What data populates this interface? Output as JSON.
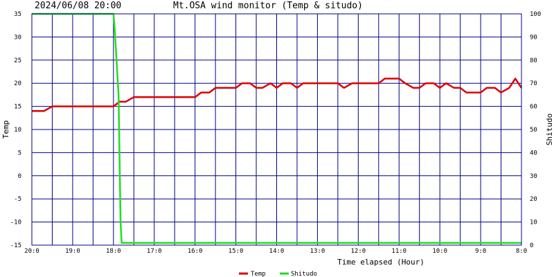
{
  "header": {
    "timestamp": "2024/06/08 20:00",
    "title": "Mt.OSA wind monitor (Temp & situdo)"
  },
  "colors": {
    "grid": "#000080",
    "temp": "#dd0000",
    "shitsudo": "#22dd22",
    "text": "#000000"
  },
  "chart_data": {
    "type": "line",
    "title": "Mt.OSA wind monitor (Temp & situdo)",
    "xlabel": "Time elapsed (Hour)",
    "ylabel_left": "Temp",
    "ylabel_right": "Shitudo",
    "x_range": [
      0,
      24
    ],
    "x_grid_step": 1,
    "x_ticks": [
      {
        "x": 0,
        "label": "20:0"
      },
      {
        "x": 2,
        "label": "19:0"
      },
      {
        "x": 4,
        "label": "18:0"
      },
      {
        "x": 6,
        "label": "17:0"
      },
      {
        "x": 8,
        "label": "16:0"
      },
      {
        "x": 10,
        "label": "15:0"
      },
      {
        "x": 12,
        "label": "14:0"
      },
      {
        "x": 14,
        "label": "13:0"
      },
      {
        "x": 16,
        "label": "12:0"
      },
      {
        "x": 18,
        "label": "11:0"
      },
      {
        "x": 20,
        "label": "10:0"
      },
      {
        "x": 22,
        "label": "9:0"
      },
      {
        "x": 24,
        "label": "8:0"
      }
    ],
    "ylim_left": [
      -15,
      35
    ],
    "y_ticks_left": [
      35,
      30,
      25,
      20,
      15,
      10,
      5,
      0,
      -5,
      -10,
      -15
    ],
    "ylim_right": [
      0,
      100
    ],
    "y_ticks_right": [
      100,
      90,
      80,
      70,
      60,
      50,
      40,
      30,
      20,
      10,
      0
    ],
    "grid": true,
    "legend_position": "bottom-center",
    "series": [
      {
        "name": "Temp",
        "axis": "left",
        "color": "#dd0000",
        "x": [
          0,
          0.6,
          1.0,
          2,
          3,
          3.5,
          4.0,
          4.3,
          4.6,
          5.0,
          6,
          7,
          8,
          8.3,
          8.7,
          9.0,
          9.5,
          10.0,
          10.3,
          10.7,
          11.0,
          11.3,
          11.7,
          12.0,
          12.3,
          12.7,
          13.0,
          13.3,
          13.7,
          14.0,
          14.5,
          15.0,
          15.3,
          15.7,
          16.0,
          17.0,
          17.3,
          17.7,
          18.0,
          18.3,
          18.7,
          19.0,
          19.3,
          19.7,
          20.0,
          20.3,
          20.7,
          21.0,
          21.3,
          21.7,
          22.0,
          22.3,
          22.7,
          23.0,
          23.4,
          23.7,
          24.0
        ],
        "y": [
          14,
          14,
          15,
          15,
          15,
          15,
          15,
          16,
          16,
          17,
          17,
          17,
          17,
          18,
          18,
          19,
          19,
          19,
          20,
          20,
          19,
          19,
          20,
          19,
          20,
          20,
          19,
          20,
          20,
          20,
          20,
          20,
          19,
          20,
          20,
          20,
          21,
          21,
          21,
          20,
          19,
          19,
          20,
          20,
          19,
          20,
          19,
          19,
          18,
          18,
          18,
          19,
          19,
          18,
          19,
          21,
          19
        ]
      },
      {
        "name": "Shitudo",
        "axis": "right",
        "color": "#22dd22",
        "x": [
          0,
          4.0,
          4.05,
          4.25,
          4.35,
          4.4,
          6,
          10,
          14,
          18,
          22,
          24
        ],
        "y": [
          100,
          100,
          95,
          65,
          10,
          1,
          1,
          1,
          1,
          1,
          1,
          1
        ]
      }
    ]
  }
}
